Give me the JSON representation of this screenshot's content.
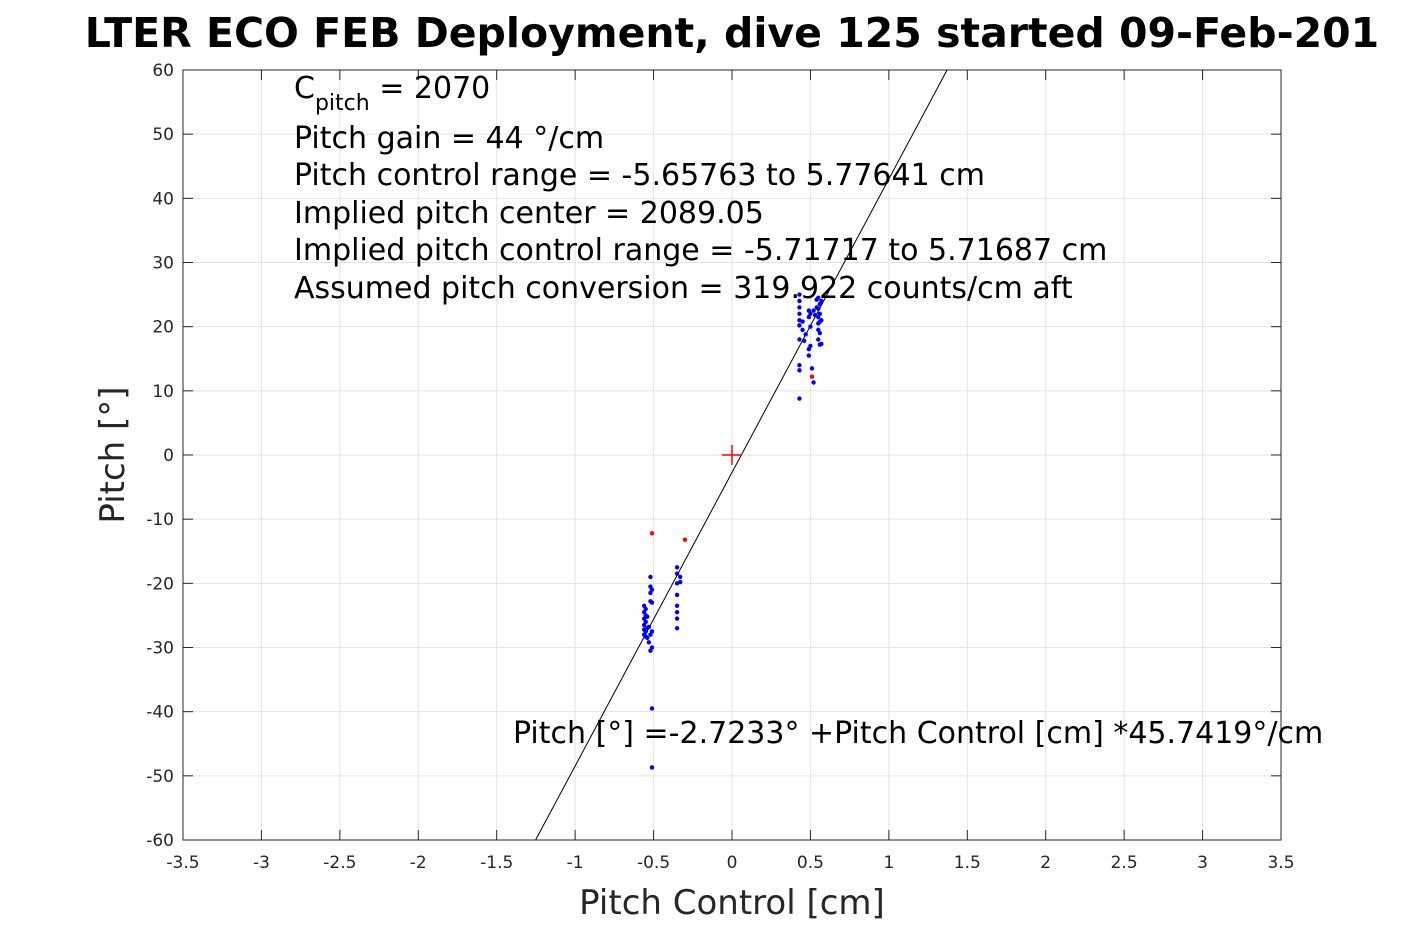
{
  "chart_data": {
    "type": "scatter",
    "title": "LTER ECO FEB Deployment, dive 125 started 09-Feb-201",
    "xlabel": "Pitch Control [cm]",
    "ylabel": "Pitch [°]",
    "xlim": [
      -3.5,
      3.5
    ],
    "ylim": [
      -60,
      60
    ],
    "x_ticks": [
      -3.5,
      -3,
      -2.5,
      -2,
      -1.5,
      -1,
      -0.5,
      0,
      0.5,
      1,
      1.5,
      2,
      2.5,
      3,
      3.5
    ],
    "x_tick_labels": [
      "-3.5",
      "-3",
      "-2.5",
      "-2",
      "-1.5",
      "-1",
      "-0.5",
      "0",
      "0.5",
      "1",
      "1.5",
      "2",
      "2.5",
      "3",
      "3.5"
    ],
    "y_ticks": [
      -60,
      -50,
      -40,
      -30,
      -20,
      -10,
      0,
      10,
      20,
      30,
      40,
      50,
      60
    ],
    "y_tick_labels": [
      "-60",
      "-50",
      "-40",
      "-30",
      "-20",
      "-10",
      "0",
      "10",
      "20",
      "30",
      "40",
      "50",
      "60"
    ],
    "grid": true,
    "fit_line": {
      "intercept": -2.7233,
      "slope": 45.7419,
      "color": "#000000"
    },
    "center_marker": {
      "x": 0,
      "y": 0,
      "color": "#ff0000",
      "symbol": "+"
    },
    "series": [
      {
        "color": "#0000ff",
        "points": [
          [
            -0.56,
            -23.5
          ],
          [
            -0.56,
            -24.5
          ],
          [
            -0.56,
            -25.5
          ],
          [
            -0.56,
            -26.5
          ],
          [
            -0.56,
            -27.2
          ],
          [
            -0.56,
            -28.0
          ],
          [
            -0.55,
            -24.0
          ],
          [
            -0.55,
            -25.0
          ],
          [
            -0.55,
            -26.0
          ],
          [
            -0.55,
            -27.5
          ],
          [
            -0.55,
            -28.3
          ],
          [
            -0.54,
            -25.2
          ],
          [
            -0.54,
            -27.0
          ],
          [
            -0.54,
            -28.5
          ],
          [
            -0.53,
            -26.8
          ],
          [
            -0.53,
            -29.2
          ],
          [
            -0.52,
            -19.0
          ],
          [
            -0.52,
            -20.5
          ],
          [
            -0.52,
            -21.5
          ],
          [
            -0.52,
            -22.8
          ],
          [
            -0.52,
            -28.0
          ],
          [
            -0.52,
            -30.5
          ],
          [
            -0.51,
            -21.0
          ],
          [
            -0.51,
            -23.0
          ],
          [
            -0.51,
            -27.5
          ],
          [
            -0.51,
            -30.0
          ],
          [
            -0.51,
            -39.5
          ],
          [
            -0.51,
            -48.7
          ],
          [
            -0.35,
            -17.5
          ],
          [
            -0.35,
            -18.5
          ],
          [
            -0.35,
            -20.0
          ],
          [
            -0.35,
            -21.8
          ],
          [
            -0.35,
            -23.5
          ],
          [
            -0.35,
            -24.5
          ],
          [
            -0.35,
            -25.5
          ],
          [
            -0.35,
            -27.0
          ],
          [
            -0.33,
            -19.0
          ],
          [
            -0.33,
            -19.8
          ],
          [
            0.43,
            8.8
          ],
          [
            0.43,
            13.2
          ],
          [
            0.43,
            14.0
          ],
          [
            0.43,
            18.0
          ],
          [
            0.43,
            20.2
          ],
          [
            0.43,
            21.0
          ],
          [
            0.43,
            22.0
          ],
          [
            0.43,
            23.0
          ],
          [
            0.43,
            24.0
          ],
          [
            0.43,
            25.0
          ],
          [
            0.45,
            19.5
          ],
          [
            0.45,
            20.8
          ],
          [
            0.46,
            17.8
          ],
          [
            0.47,
            18.8
          ],
          [
            0.49,
            15.5
          ],
          [
            0.49,
            16.5
          ],
          [
            0.49,
            21.5
          ],
          [
            0.49,
            22.5
          ],
          [
            0.5,
            17.0
          ],
          [
            0.5,
            20.0
          ],
          [
            0.5,
            22.0
          ],
          [
            0.51,
            13.5
          ],
          [
            0.52,
            11.3
          ],
          [
            0.52,
            22.5
          ],
          [
            0.53,
            21.8
          ],
          [
            0.54,
            23.0
          ],
          [
            0.54,
            24.2
          ],
          [
            0.55,
            18.0
          ],
          [
            0.55,
            19.5
          ],
          [
            0.55,
            20.5
          ],
          [
            0.55,
            21.5
          ],
          [
            0.55,
            22.8
          ],
          [
            0.55,
            24.5
          ],
          [
            0.56,
            17.2
          ],
          [
            0.56,
            19.0
          ],
          [
            0.56,
            20.8
          ],
          [
            0.56,
            22.0
          ],
          [
            0.56,
            23.5
          ],
          [
            0.57,
            17.3
          ],
          [
            0.57,
            21.0
          ],
          [
            0.57,
            24.0
          ]
        ]
      },
      {
        "color": "#ff0000",
        "points": [
          [
            -0.51,
            -12.2
          ],
          [
            -0.3,
            -13.2
          ],
          [
            0.51,
            12.2
          ]
        ]
      }
    ],
    "annotations": {
      "c_pitch_main": "C",
      "c_pitch_sub": "pitch",
      "c_pitch_value": " = 2070",
      "lines": [
        "Pitch gain = 44 °/cm",
        "Pitch control range = -5.65763 to 5.77641 cm",
        "Implied pitch center = 2089.05",
        "Implied pitch control range = -5.71717 to 5.71687 cm",
        "Assumed pitch conversion = 319.922 counts/cm aft"
      ],
      "fit_equation": "Pitch [°] =-2.7233° +Pitch Control [cm] *45.7419°/cm"
    }
  }
}
